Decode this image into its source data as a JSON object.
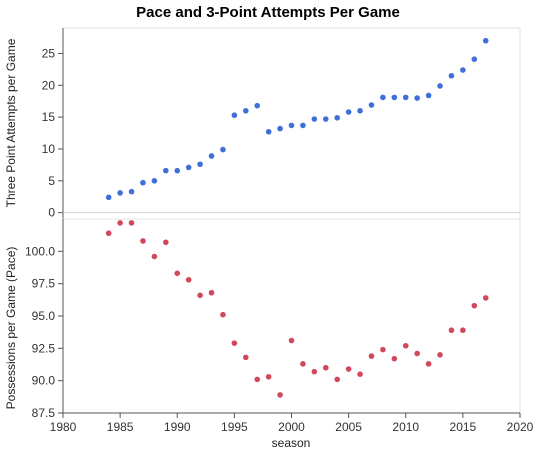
{
  "chart_data": {
    "type": "scatter",
    "title": "Pace and 3-Point Attempts Per Game",
    "xlabel": "season",
    "xlim": [
      1980,
      2020
    ],
    "x_ticks": [
      "1980",
      "1985",
      "1990",
      "1995",
      "2000",
      "2005",
      "2010",
      "2015",
      "2020"
    ],
    "panels": [
      {
        "id": "three_pt",
        "ylabel": "Three Point Attempts per Game",
        "ylim": [
          -1,
          29
        ],
        "y_ticks": [
          "0",
          "5",
          "10",
          "15",
          "20",
          "25"
        ],
        "color": "#3f6fd8",
        "zero_line": true,
        "series": [
          {
            "x": [
              1984,
              1985,
              1986,
              1987,
              1988,
              1989,
              1990,
              1991,
              1992,
              1993,
              1994,
              1995,
              1996,
              1997,
              1998,
              1999,
              2000,
              2001,
              2002,
              2003,
              2004,
              2005,
              2006,
              2007,
              2008,
              2009,
              2010,
              2011,
              2012,
              2013,
              2014,
              2015,
              2016,
              2017
            ],
            "y": [
              2.4,
              3.1,
              3.3,
              4.7,
              5.0,
              6.6,
              6.6,
              7.1,
              7.6,
              8.9,
              9.9,
              15.3,
              16.0,
              16.8,
              12.7,
              13.2,
              13.7,
              13.7,
              14.7,
              14.7,
              14.9,
              15.8,
              16.0,
              16.9,
              18.1,
              18.1,
              18.1,
              18.0,
              18.4,
              19.9,
              21.5,
              22.4,
              24.1,
              27.0
            ]
          }
        ]
      },
      {
        "id": "pace",
        "ylabel": "Possessions per Game (Pace)",
        "ylim": [
          87.5,
          102.5
        ],
        "y_ticks": [
          "87.5",
          "90.0",
          "92.5",
          "95.0",
          "97.5",
          "100.0"
        ],
        "color": "#d0485a",
        "series": [
          {
            "x": [
              1984,
              1985,
              1986,
              1987,
              1988,
              1989,
              1990,
              1991,
              1992,
              1993,
              1994,
              1995,
              1996,
              1997,
              1998,
              1999,
              2000,
              2001,
              2002,
              2003,
              2004,
              2005,
              2006,
              2007,
              2008,
              2009,
              2010,
              2011,
              2012,
              2013,
              2014,
              2015,
              2016,
              2017
            ],
            "y": [
              101.4,
              102.2,
              102.2,
              100.8,
              99.6,
              100.7,
              98.3,
              97.8,
              96.6,
              96.8,
              95.1,
              92.9,
              91.8,
              90.1,
              90.3,
              88.9,
              93.1,
              91.3,
              90.7,
              91.0,
              90.1,
              90.9,
              90.5,
              91.9,
              92.4,
              91.7,
              92.7,
              92.1,
              91.3,
              92.0,
              93.9,
              93.9,
              95.8,
              96.4
            ]
          }
        ]
      }
    ]
  }
}
